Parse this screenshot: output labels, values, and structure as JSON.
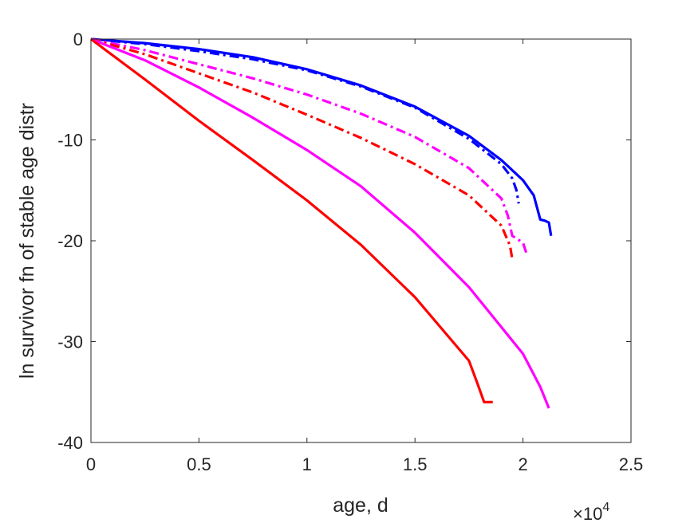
{
  "chart_data": {
    "type": "line",
    "title": "",
    "xlabel": "age, d",
    "ylabel": "ln survivor fn of stable age distr",
    "x_exponent_label": {
      "base": "×10",
      "exp": "4"
    },
    "xlim": [
      0,
      25000
    ],
    "ylim": [
      -40,
      0
    ],
    "xticks": [
      0,
      5000,
      10000,
      15000,
      20000,
      25000
    ],
    "xtick_labels": [
      "0",
      "0.5",
      "1",
      "1.5",
      "2",
      "2.5"
    ],
    "yticks": [
      0,
      -10,
      -20,
      -30,
      -40
    ],
    "ytick_labels": [
      "0",
      "-10",
      "-20",
      "-30",
      "-40"
    ],
    "grid": false,
    "legend": "none",
    "series": [
      {
        "color": "#0000ff",
        "style": "solid",
        "x": [
          0,
          2500,
          5000,
          7500,
          10000,
          12500,
          15000,
          17500,
          19000,
          20000,
          20500,
          20800,
          21000,
          21200,
          21300
        ],
        "y": [
          0,
          -0.4,
          -1.0,
          -1.8,
          -3.0,
          -4.6,
          -6.7,
          -9.6,
          -12.0,
          -14.0,
          -15.5,
          -17.9,
          -18.0,
          -18.2,
          -19.5
        ]
      },
      {
        "color": "#0000ff",
        "style": "dashdot",
        "x": [
          0,
          2500,
          5000,
          7500,
          10000,
          12500,
          15000,
          17500,
          19000,
          19500,
          19700,
          19800
        ],
        "y": [
          0,
          -0.5,
          -1.2,
          -2.0,
          -3.1,
          -4.7,
          -6.8,
          -9.9,
          -12.4,
          -13.8,
          -15.0,
          -16.3
        ]
      },
      {
        "color": "#ff00ff",
        "style": "dashdot",
        "x": [
          0,
          2500,
          5000,
          7500,
          10000,
          12500,
          15000,
          17500,
          19000,
          19300,
          19500,
          20000,
          20200
        ],
        "y": [
          0,
          -1.1,
          -2.5,
          -3.9,
          -5.5,
          -7.4,
          -9.7,
          -12.8,
          -15.8,
          -17.5,
          -19.5,
          -20.2,
          -21.5
        ]
      },
      {
        "color": "#ff0000",
        "style": "dashdot",
        "x": [
          0,
          2500,
          5000,
          7500,
          10000,
          12500,
          15000,
          17500,
          19000,
          19400,
          19500
        ],
        "y": [
          0,
          -1.5,
          -3.4,
          -5.3,
          -7.5,
          -9.8,
          -12.4,
          -15.5,
          -18.5,
          -20.5,
          -21.8
        ]
      },
      {
        "color": "#ff00ff",
        "style": "solid",
        "x": [
          0,
          2500,
          5000,
          7500,
          10000,
          12500,
          15000,
          17500,
          20000,
          20800,
          21200
        ],
        "y": [
          0,
          -2.1,
          -4.8,
          -7.8,
          -11.0,
          -14.6,
          -19.2,
          -24.6,
          -31.2,
          -34.5,
          -36.6
        ]
      },
      {
        "color": "#ff0000",
        "style": "solid",
        "x": [
          0,
          2500,
          5000,
          7500,
          10000,
          12500,
          15000,
          17500,
          17900,
          18200,
          18400,
          18600
        ],
        "y": [
          0,
          -4.0,
          -8.1,
          -12.0,
          -16.0,
          -20.4,
          -25.6,
          -31.9,
          -34.2,
          -36.0,
          -36.0,
          -36.0
        ]
      }
    ]
  }
}
